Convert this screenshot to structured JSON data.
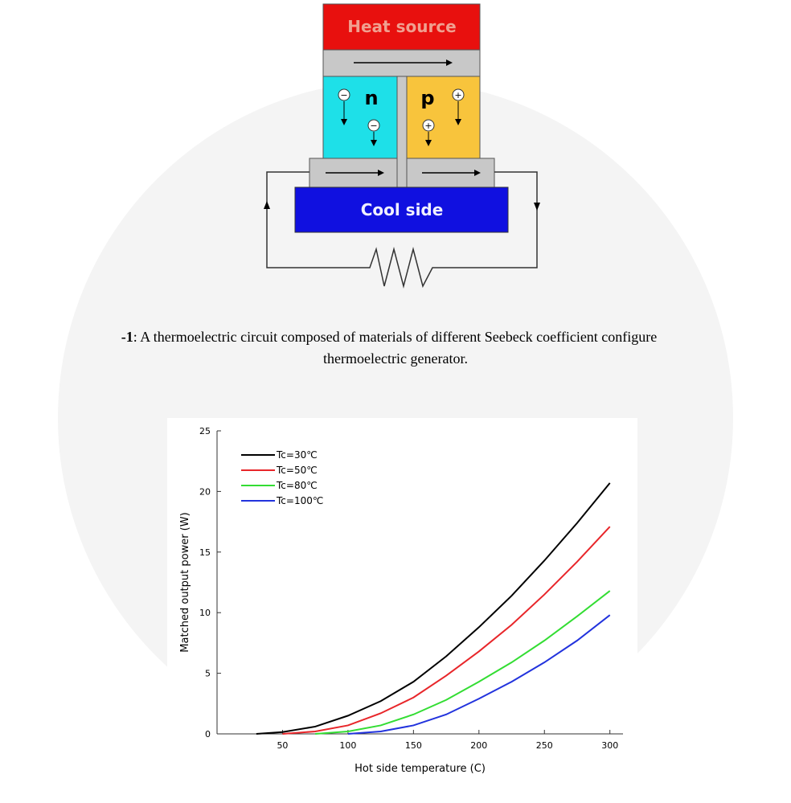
{
  "diagram": {
    "heat_label": "Heat source",
    "n_label": "n",
    "p_label": "p",
    "cool_label": "Cool side",
    "electron": "−",
    "hole": "+"
  },
  "caption": {
    "label": "-1",
    "text": ": A thermoelectric circuit composed of materials of different Seebeck coefficient configure",
    "line2": "thermoelectric generator."
  },
  "chart_data": {
    "type": "line",
    "xlabel": "Hot side temperature (C)",
    "ylabel": "Matched output power (W)",
    "x": [
      30,
      50,
      75,
      100,
      125,
      150,
      175,
      200,
      225,
      250,
      275,
      300
    ],
    "series": [
      {
        "name": "Tc=30℃",
        "color": "#000000",
        "values": [
          0,
          0.15,
          0.6,
          1.5,
          2.7,
          4.3,
          6.4,
          8.8,
          11.4,
          14.3,
          17.4,
          20.7
        ]
      },
      {
        "name": "Tc=50℃",
        "color": "#e8262a",
        "values": [
          null,
          0,
          0.2,
          0.7,
          1.7,
          3.0,
          4.8,
          6.8,
          9.0,
          11.5,
          14.2,
          17.1
        ]
      },
      {
        "name": "Tc=80℃",
        "color": "#33dd33",
        "values": [
          null,
          null,
          0,
          0.2,
          0.7,
          1.6,
          2.8,
          4.3,
          5.9,
          7.7,
          9.7,
          11.8
        ]
      },
      {
        "name": "Tc=100℃",
        "color": "#2233dd",
        "values": [
          null,
          null,
          null,
          0,
          0.2,
          0.7,
          1.6,
          2.9,
          4.3,
          5.9,
          7.7,
          9.8
        ]
      }
    ],
    "xlim": [
      0,
      310
    ],
    "ylim": [
      0,
      25
    ],
    "xticks": [
      50,
      100,
      150,
      200,
      250,
      300
    ],
    "yticks": [
      0,
      5,
      10,
      15,
      20,
      25
    ],
    "legend": "upper-left"
  }
}
